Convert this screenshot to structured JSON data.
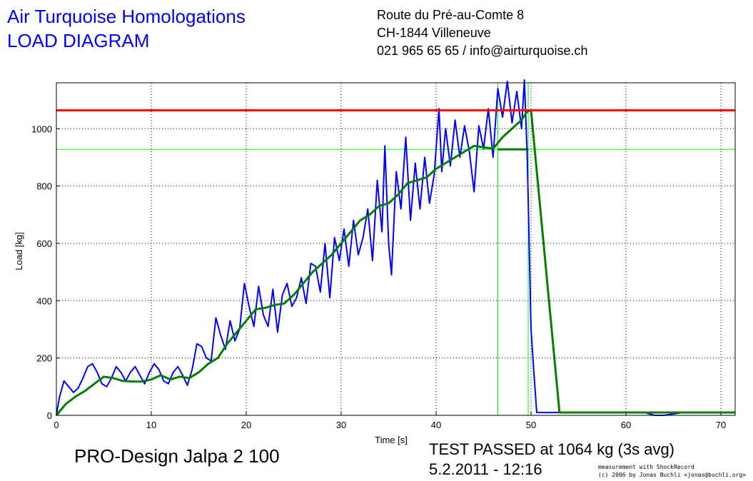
{
  "header": {
    "title_line1": "Air Turquoise Homologations",
    "title_line2": "LOAD DIAGRAM",
    "address_line1": "Route du Pré-au-Comte 8",
    "address_line2": "CH-1844 Villeneuve",
    "address_line3": "021 965 65 65 / info@airturquoise.ch"
  },
  "footer": {
    "product": "PRO-Design Jalpa 2 100",
    "result": "TEST PASSED at 1064 kg (3s avg)",
    "date": "5.2.2011 - 12:16",
    "credit_line1": "measurement with ShockRecord",
    "credit_line2": "(c) 2006 by Jonas Buchli <jonas@buchli.org>"
  },
  "colors": {
    "raw": "#0000ff",
    "avg": "#007f00",
    "limit": "#ff0000",
    "marker": "#00ff00"
  },
  "chart_data": {
    "type": "line",
    "xlabel": "Time [s]",
    "ylabel": "Load [kg]",
    "xlim": [
      0,
      71.5
    ],
    "ylim": [
      0,
      1160
    ],
    "xticks": [
      0,
      10,
      20,
      30,
      40,
      50,
      60,
      70
    ],
    "yticks": [
      0,
      200,
      400,
      600,
      800,
      1000
    ],
    "grid": true,
    "limit_line": 1064,
    "level_line": 928,
    "marker_x": [
      46.5,
      49.7
    ],
    "series": [
      {
        "key": "raw",
        "x": [
          0,
          0.3,
          0.8,
          1.3,
          1.8,
          2.3,
          2.8,
          3.3,
          3.8,
          4.3,
          4.8,
          5.3,
          5.8,
          6.3,
          6.8,
          7.3,
          7.8,
          8.3,
          8.8,
          9.3,
          9.8,
          10.3,
          10.8,
          11.3,
          11.8,
          12.3,
          12.8,
          13.3,
          13.8,
          14.3,
          14.8,
          15.3,
          15.8,
          16.3,
          16.8,
          17.3,
          17.8,
          18.3,
          18.8,
          19.3,
          19.8,
          20.3,
          20.8,
          21.3,
          21.8,
          22.3,
          22.8,
          23.3,
          23.8,
          24.3,
          24.8,
          25.3,
          25.8,
          26.3,
          26.8,
          27.3,
          27.8,
          28.3,
          28.8,
          29.3,
          29.8,
          30.3,
          30.8,
          31.3,
          31.8,
          32.3,
          32.8,
          33.3,
          33.8,
          34.3,
          34.6,
          35.0,
          35.3,
          35.8,
          36.3,
          36.8,
          37.3,
          37.8,
          38.3,
          38.8,
          39.3,
          39.8,
          40.3,
          40.6,
          41.0,
          41.5,
          42.0,
          42.5,
          43.0,
          43.5,
          44.0,
          44.5,
          45.0,
          45.5,
          46.0,
          46.5,
          47.0,
          47.5,
          48.0,
          48.5,
          49.0,
          49.3,
          49.6,
          49.8,
          50.0,
          50.3,
          50.6,
          51.0,
          52.0,
          53.0,
          55.0,
          60.0,
          62.0,
          63.0,
          64.0,
          66.0,
          68.0,
          70.0,
          71.5
        ],
        "y": [
          0,
          60,
          120,
          100,
          80,
          95,
          130,
          170,
          180,
          150,
          110,
          100,
          130,
          170,
          150,
          120,
          150,
          170,
          140,
          110,
          150,
          180,
          160,
          120,
          110,
          150,
          170,
          140,
          105,
          160,
          250,
          240,
          200,
          190,
          340,
          280,
          230,
          330,
          260,
          300,
          460,
          380,
          310,
          450,
          350,
          310,
          440,
          290,
          420,
          460,
          380,
          410,
          480,
          390,
          530,
          520,
          430,
          600,
          410,
          620,
          540,
          650,
          520,
          680,
          560,
          620,
          720,
          540,
          820,
          640,
          940,
          600,
          490,
          850,
          720,
          970,
          680,
          880,
          720,
          900,
          740,
          840,
          1070,
          850,
          1000,
          870,
          1030,
          900,
          1010,
          920,
          780,
          1010,
          930,
          1070,
          900,
          1140,
          1040,
          1165,
          1020,
          1130,
          1000,
          1170,
          900,
          600,
          300,
          150,
          10,
          10,
          10,
          10,
          10,
          10,
          10,
          0,
          0,
          10,
          10,
          10,
          10
        ]
      },
      {
        "key": "avg",
        "x": [
          0,
          1,
          2,
          3,
          4,
          5,
          6,
          7,
          8,
          9,
          10,
          11,
          12,
          13,
          14,
          15,
          16,
          17,
          18,
          19,
          20,
          21,
          22,
          23,
          24,
          25,
          26,
          27,
          28,
          29,
          30,
          31,
          32,
          33,
          34,
          35,
          36,
          37,
          38,
          39,
          40,
          41,
          42,
          43,
          44,
          45,
          46,
          47,
          48,
          49,
          49.6,
          50.0,
          53.0,
          55,
          60,
          65,
          71.5
        ],
        "y": [
          0,
          40,
          65,
          85,
          110,
          135,
          130,
          120,
          118,
          118,
          125,
          140,
          125,
          135,
          130,
          150,
          180,
          200,
          250,
          290,
          330,
          370,
          375,
          385,
          390,
          420,
          460,
          500,
          530,
          560,
          600,
          640,
          680,
          700,
          730,
          740,
          770,
          810,
          820,
          830,
          860,
          880,
          900,
          920,
          940,
          935,
          930,
          970,
          1000,
          1030,
          1060,
          1064,
          10,
          10,
          10,
          10,
          10
        ]
      }
    ]
  }
}
